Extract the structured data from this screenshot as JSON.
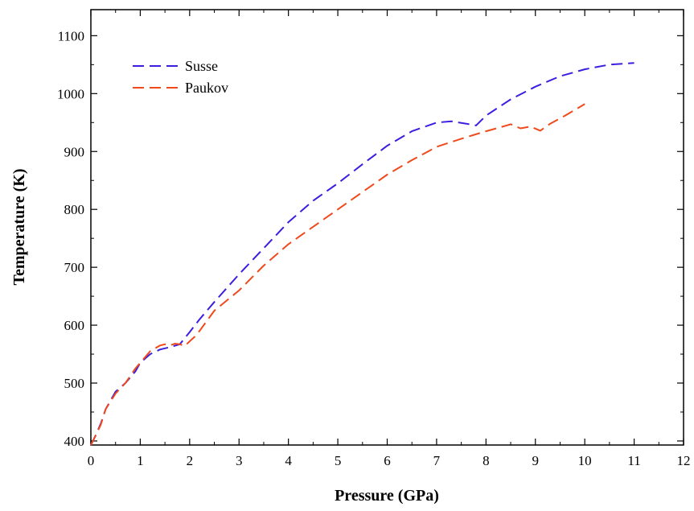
{
  "chart_data": {
    "type": "line",
    "title": "",
    "xlabel": "Pressure (GPa)",
    "ylabel": "Temperature (K)",
    "xlim": [
      0,
      12
    ],
    "ylim": [
      393,
      1145
    ],
    "xticks": [
      0,
      1,
      2,
      3,
      4,
      5,
      6,
      7,
      8,
      9,
      10,
      11,
      12
    ],
    "xtick_labels": [
      "0",
      "1",
      "2",
      "3",
      "4",
      "5",
      "6",
      "7",
      "8",
      "9",
      "10",
      "11",
      "12"
    ],
    "yticks": [
      400,
      500,
      600,
      700,
      800,
      900,
      1000,
      1100
    ],
    "ytick_labels": [
      "400",
      "500",
      "600",
      "700",
      "800",
      "900",
      "1000",
      "1100"
    ],
    "grid": false,
    "legend_position": "top-left",
    "series": [
      {
        "name": "Susse",
        "color": "#3a1fe0",
        "line_style": "dashed",
        "x": [
          0.0,
          0.1,
          0.2,
          0.3,
          0.5,
          0.7,
          0.9,
          1.0,
          1.2,
          1.4,
          1.6,
          1.8,
          2.0,
          2.2,
          2.5,
          3.0,
          3.5,
          4.0,
          4.5,
          5.0,
          5.5,
          6.0,
          6.5,
          7.0,
          7.3,
          7.6,
          7.8,
          8.0,
          8.5,
          9.0,
          9.5,
          10.0,
          10.5,
          11.0
        ],
        "y": [
          393,
          410,
          430,
          455,
          485,
          500,
          520,
          535,
          550,
          558,
          562,
          567,
          588,
          610,
          640,
          688,
          733,
          778,
          815,
          845,
          878,
          910,
          935,
          950,
          952,
          948,
          945,
          962,
          990,
          1012,
          1030,
          1042,
          1050,
          1053
        ]
      },
      {
        "name": "Paukov",
        "color": "#f04a1c",
        "line_style": "dashed",
        "x": [
          0.0,
          0.1,
          0.2,
          0.3,
          0.5,
          0.7,
          0.9,
          1.0,
          1.1,
          1.2,
          1.3,
          1.4,
          1.5,
          1.6,
          1.7,
          1.8,
          1.9,
          2.0,
          2.1,
          2.2,
          2.5,
          3.0,
          3.5,
          4.0,
          4.5,
          5.0,
          5.5,
          6.0,
          6.5,
          7.0,
          7.5,
          8.0,
          8.3,
          8.5,
          8.7,
          8.9,
          9.1,
          9.3,
          9.6,
          9.8,
          10.0
        ],
        "y": [
          393,
          410,
          428,
          455,
          482,
          500,
          525,
          535,
          545,
          555,
          560,
          565,
          567,
          565,
          568,
          567,
          564,
          572,
          580,
          590,
          625,
          660,
          703,
          740,
          770,
          800,
          830,
          860,
          885,
          908,
          922,
          935,
          942,
          947,
          940,
          943,
          936,
          948,
          962,
          972,
          982
        ]
      }
    ]
  }
}
